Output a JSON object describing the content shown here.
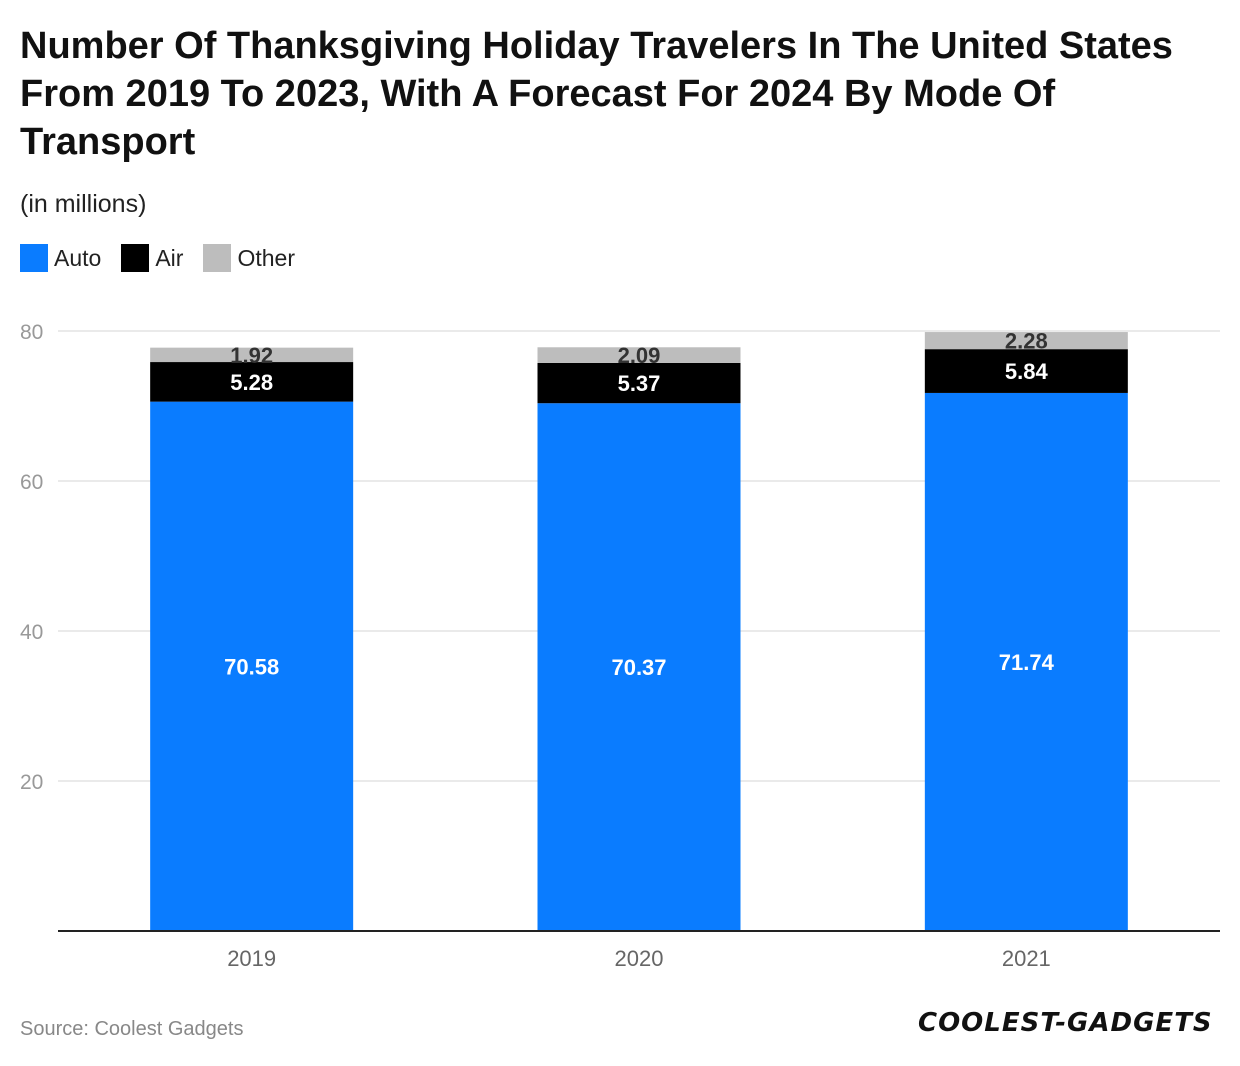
{
  "title": "Number Of Thanksgiving Holiday Travelers In The United States From 2019 To 2023, With A Forecast For 2024 By Mode Of Transport",
  "subtitle": "(in millions)",
  "source": "Source: Coolest Gadgets",
  "logo_text": "COOLEST-GADGETS",
  "colors": {
    "auto": "#0a7cff",
    "air": "#000000",
    "other": "#bdbdbd"
  },
  "chart_data": {
    "type": "bar",
    "stacked": true,
    "categories": [
      "2019",
      "2020",
      "2021"
    ],
    "series": [
      {
        "name": "Auto",
        "values": [
          70.58,
          70.37,
          71.74
        ],
        "color": "#0a7cff"
      },
      {
        "name": "Air",
        "values": [
          5.28,
          5.37,
          5.84
        ],
        "color": "#000000"
      },
      {
        "name": "Other",
        "values": [
          1.92,
          2.09,
          2.28
        ],
        "color": "#bdbdbd"
      }
    ],
    "yticks": [
      20,
      40,
      60,
      80
    ],
    "ylim": [
      0,
      80
    ],
    "grid": true,
    "legend_position": "top-left"
  }
}
